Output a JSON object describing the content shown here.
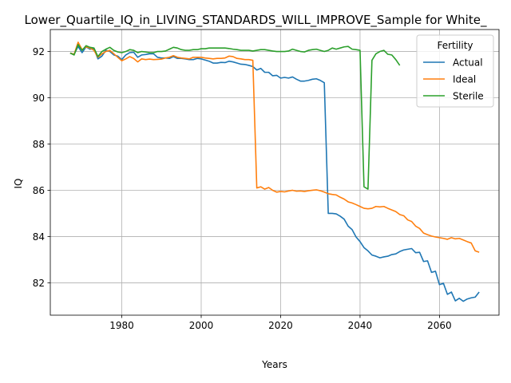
{
  "chart_data": {
    "type": "line",
    "title": "Lower_Quartile_IQ_in_LIVING_STANDARDS_WILL_IMPROVE_Sample for White_",
    "xlabel": "Years",
    "ylabel": "IQ",
    "xlim": [
      1962,
      2075
    ],
    "ylim": [
      80.6,
      92.95
    ],
    "xticks": [
      1980,
      2000,
      2020,
      2040,
      2060
    ],
    "yticks": [
      82,
      84,
      86,
      88,
      90,
      92
    ],
    "grid": true,
    "legend": {
      "title": "Fertility",
      "placement": "upper right"
    },
    "colors": {
      "Actual": "#1f77b4",
      "Ideal": "#ff7f0e",
      "Sterile": "#2ca02c"
    },
    "series": [
      {
        "name": "Actual",
        "x": [
          1967,
          1968,
          1969,
          1970,
          1971,
          1972,
          1973,
          1974,
          1975,
          1976,
          1977,
          1978,
          1979,
          1980,
          1981,
          1982,
          1983,
          1984,
          1985,
          1986,
          1987,
          1988,
          1989,
          1990,
          1991,
          1992,
          1993,
          1994,
          1995,
          1996,
          1997,
          1998,
          1999,
          2000,
          2001,
          2002,
          2003,
          2004,
          2005,
          2006,
          2007,
          2008,
          2009,
          2010,
          2011,
          2012,
          2013,
          2014,
          2015,
          2016,
          2017,
          2018,
          2019,
          2020,
          2021,
          2022,
          2023,
          2024,
          2025,
          2026,
          2027,
          2028,
          2029,
          2030,
          2031,
          2032,
          2033,
          2034,
          2035,
          2036,
          2037,
          2038,
          2039,
          2040,
          2041,
          2042,
          2043,
          2044,
          2045,
          2046,
          2047,
          2048,
          2049,
          2050,
          2051,
          2052,
          2053,
          2054,
          2055,
          2056,
          2057,
          2058,
          2059,
          2060,
          2061,
          2062,
          2063,
          2064,
          2065,
          2066,
          2067,
          2068,
          2069,
          2070
        ],
        "values": [
          91.93,
          91.88,
          92.22,
          91.95,
          92.2,
          92.1,
          92.12,
          91.68,
          91.8,
          92.05,
          92.0,
          91.85,
          91.8,
          91.65,
          91.85,
          91.95,
          91.97,
          91.75,
          91.85,
          91.87,
          91.9,
          91.9,
          91.75,
          91.72,
          91.72,
          91.7,
          91.78,
          91.7,
          91.7,
          91.68,
          91.65,
          91.65,
          91.7,
          91.68,
          91.63,
          91.58,
          91.5,
          91.5,
          91.53,
          91.52,
          91.58,
          91.55,
          91.5,
          91.45,
          91.44,
          91.4,
          91.35,
          91.2,
          91.27,
          91.1,
          91.1,
          90.95,
          90.97,
          90.85,
          90.88,
          90.85,
          90.9,
          90.8,
          90.72,
          90.72,
          90.75,
          90.8,
          90.82,
          90.75,
          90.65,
          85.0,
          85.0,
          84.98,
          84.88,
          84.75,
          84.45,
          84.3,
          83.98,
          83.78,
          83.52,
          83.38,
          83.2,
          83.15,
          83.08,
          83.12,
          83.15,
          83.22,
          83.25,
          83.35,
          83.42,
          83.45,
          83.48,
          83.3,
          83.32,
          82.92,
          82.95,
          82.45,
          82.5,
          81.92,
          81.98,
          81.5,
          81.6,
          81.22,
          81.33,
          81.2,
          81.3,
          81.35,
          81.38,
          81.6
        ]
      },
      {
        "name": "Ideal",
        "x": [
          1967,
          1968,
          1969,
          1970,
          1971,
          1972,
          1973,
          1974,
          1975,
          1976,
          1977,
          1978,
          1979,
          1980,
          1981,
          1982,
          1983,
          1984,
          1985,
          1986,
          1987,
          1988,
          1989,
          1990,
          1991,
          1992,
          1993,
          1994,
          1995,
          1996,
          1997,
          1998,
          1999,
          2000,
          2001,
          2002,
          2003,
          2004,
          2005,
          2006,
          2007,
          2008,
          2009,
          2010,
          2011,
          2012,
          2013,
          2014,
          2015,
          2016,
          2017,
          2018,
          2019,
          2020,
          2021,
          2022,
          2023,
          2024,
          2025,
          2026,
          2027,
          2028,
          2029,
          2030,
          2031,
          2032,
          2033,
          2034,
          2035,
          2036,
          2037,
          2038,
          2039,
          2040,
          2041,
          2042,
          2043,
          2044,
          2045,
          2046,
          2047,
          2048,
          2049,
          2050,
          2051,
          2052,
          2053,
          2054,
          2055,
          2056,
          2057,
          2058,
          2059,
          2060,
          2061,
          2062,
          2063,
          2064,
          2065,
          2066,
          2067,
          2068,
          2069,
          2070
        ],
        "values": [
          91.93,
          91.88,
          92.4,
          92.08,
          92.2,
          92.15,
          92.05,
          91.75,
          91.9,
          92.0,
          92.05,
          91.9,
          91.75,
          91.6,
          91.68,
          91.78,
          91.7,
          91.55,
          91.68,
          91.65,
          91.67,
          91.65,
          91.66,
          91.67,
          91.72,
          91.75,
          91.82,
          91.75,
          91.72,
          91.7,
          91.68,
          91.75,
          91.75,
          91.75,
          91.72,
          91.7,
          91.68,
          91.7,
          91.7,
          91.72,
          91.8,
          91.78,
          91.7,
          91.68,
          91.65,
          91.65,
          91.62,
          86.1,
          86.15,
          86.05,
          86.12,
          86.0,
          85.92,
          85.95,
          85.93,
          85.97,
          86.0,
          85.96,
          85.97,
          85.95,
          85.98,
          86.0,
          86.02,
          85.98,
          85.92,
          85.85,
          85.82,
          85.8,
          85.7,
          85.62,
          85.5,
          85.45,
          85.38,
          85.3,
          85.22,
          85.2,
          85.22,
          85.3,
          85.28,
          85.3,
          85.22,
          85.15,
          85.08,
          84.95,
          84.9,
          84.72,
          84.65,
          84.45,
          84.35,
          84.15,
          84.08,
          84.02,
          83.98,
          83.95,
          83.92,
          83.88,
          83.95,
          83.9,
          83.92,
          83.85,
          83.78,
          83.72,
          83.38,
          83.32
        ]
      },
      {
        "name": "Sterile",
        "x": [
          1967,
          1968,
          1969,
          1970,
          1971,
          1972,
          1973,
          1974,
          1975,
          1976,
          1977,
          1978,
          1979,
          1980,
          1981,
          1982,
          1983,
          1984,
          1985,
          1986,
          1987,
          1988,
          1989,
          1990,
          1991,
          1992,
          1993,
          1994,
          1995,
          1996,
          1997,
          1998,
          1999,
          2000,
          2001,
          2002,
          2003,
          2004,
          2005,
          2006,
          2007,
          2008,
          2009,
          2010,
          2011,
          2012,
          2013,
          2014,
          2015,
          2016,
          2017,
          2018,
          2019,
          2020,
          2021,
          2022,
          2023,
          2024,
          2025,
          2026,
          2027,
          2028,
          2029,
          2030,
          2031,
          2032,
          2033,
          2034,
          2035,
          2036,
          2037,
          2038,
          2039,
          2040,
          2041,
          2042,
          2043,
          2044,
          2045,
          2046,
          2047,
          2048,
          2049,
          2050
        ],
        "values": [
          91.93,
          91.85,
          92.3,
          92.05,
          92.25,
          92.18,
          92.15,
          91.78,
          92.0,
          92.1,
          92.18,
          92.05,
          91.98,
          91.95,
          92.0,
          92.08,
          92.05,
          91.95,
          92.0,
          91.98,
          91.95,
          91.95,
          92.0,
          92.0,
          92.02,
          92.1,
          92.18,
          92.15,
          92.08,
          92.05,
          92.05,
          92.08,
          92.08,
          92.12,
          92.12,
          92.15,
          92.15,
          92.15,
          92.15,
          92.15,
          92.13,
          92.1,
          92.08,
          92.05,
          92.05,
          92.05,
          92.02,
          92.05,
          92.08,
          92.08,
          92.05,
          92.02,
          92.0,
          92.0,
          92.0,
          92.02,
          92.1,
          92.05,
          92.0,
          91.98,
          92.05,
          92.08,
          92.1,
          92.05,
          92.0,
          92.05,
          92.15,
          92.1,
          92.15,
          92.2,
          92.22,
          92.1,
          92.08,
          92.05,
          86.15,
          86.05,
          91.62,
          91.9,
          92.0,
          92.05,
          91.88,
          91.85,
          91.65,
          91.4
        ]
      }
    ]
  }
}
